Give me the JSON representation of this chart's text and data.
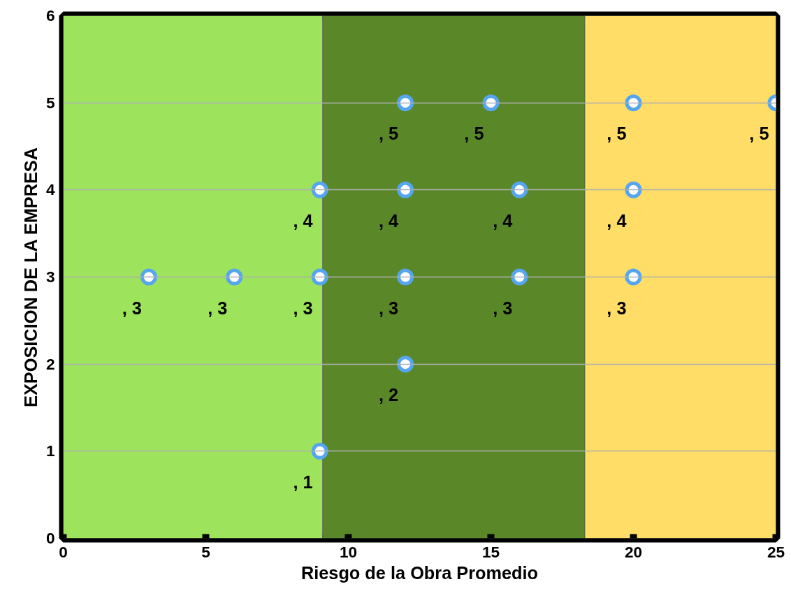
{
  "chart_data": {
    "type": "scatter",
    "xlabel": "Riesgo de la Obra Promedio",
    "ylabel": "EXPOSICION DE LA EMPRESA",
    "x": [
      3,
      6,
      9,
      9,
      9,
      12,
      12,
      12,
      12,
      15,
      16,
      16,
      20,
      20,
      20,
      25
    ],
    "series": [
      {
        "color": "#55a5f0",
        "values": [
          3,
          3,
          3,
          4,
          1,
          5,
          4,
          3,
          2,
          5,
          4,
          3,
          5,
          4,
          3,
          5
        ],
        "value_labels": [
          ", 3",
          ", 3",
          ", 3",
          ", 4",
          ", 1",
          ", 5",
          ", 4",
          ", 3",
          ", 2",
          ", 5",
          ", 4",
          ", 3",
          ", 5",
          ", 4",
          ", 3",
          ", 5"
        ]
      }
    ],
    "marker": "circle",
    "xlim": [
      0,
      25
    ],
    "ylim": [
      0,
      6
    ],
    "xticks": [
      0,
      5,
      10,
      15,
      20,
      25
    ],
    "yticks": [
      0,
      1,
      2,
      3,
      4,
      5,
      6
    ],
    "grid": "y",
    "bands": [
      {
        "axis": "x",
        "from": 0,
        "to": 9.1,
        "color": "#9de35c"
      },
      {
        "axis": "x",
        "from": 9.1,
        "to": 18.3,
        "color": "#5a8728"
      },
      {
        "axis": "x",
        "from": 18.3,
        "to": 25,
        "color": "#ffdd66"
      }
    ]
  }
}
